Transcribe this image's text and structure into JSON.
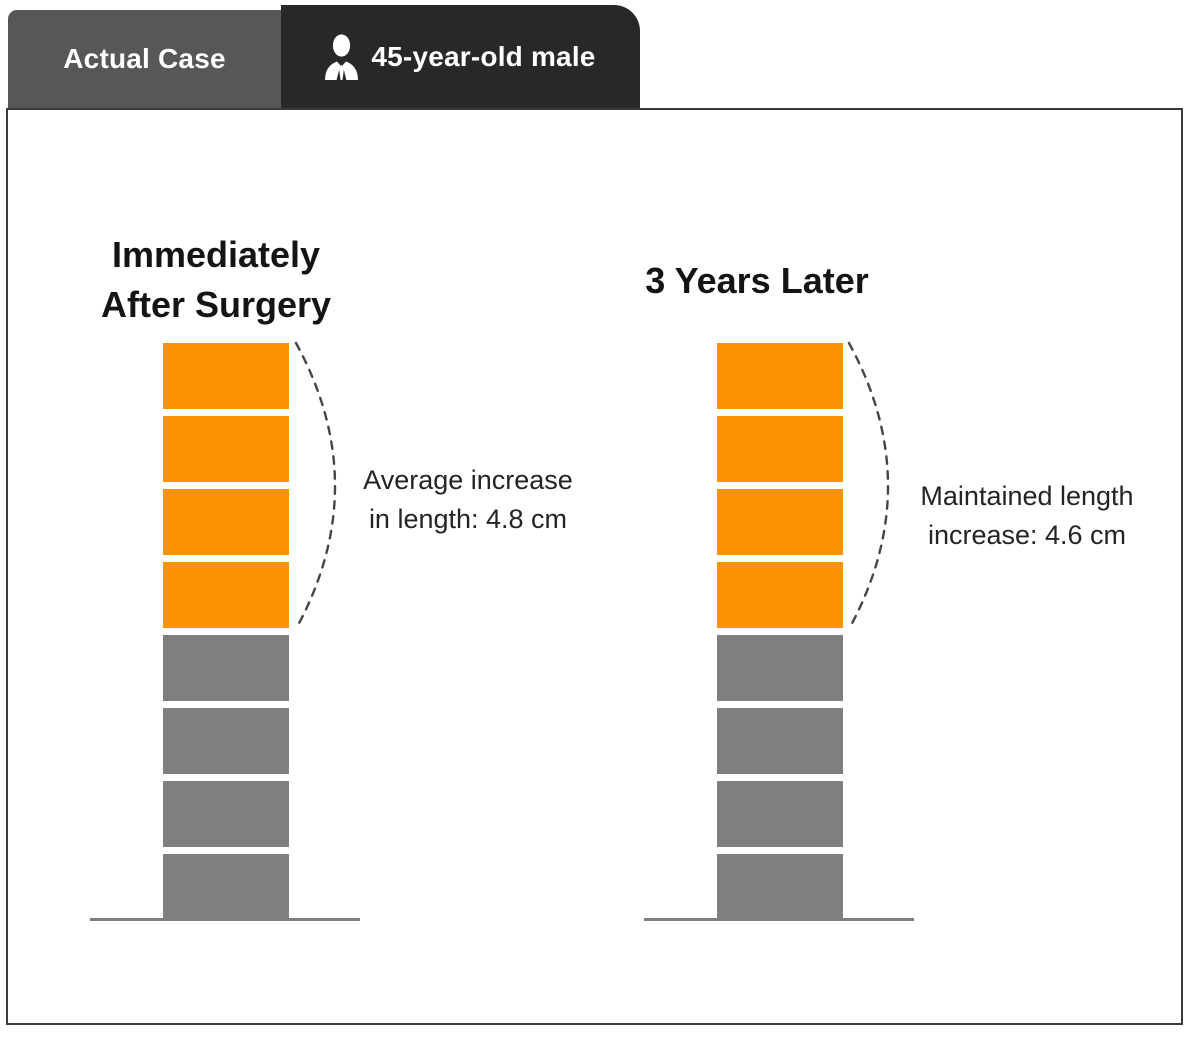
{
  "tabs": {
    "actual_case": {
      "label": "Actual Case"
    },
    "patient": {
      "label": "45-year-old male",
      "icon": "businessman-icon"
    }
  },
  "panels": [
    {
      "id": "immediately-after-surgery",
      "title_lines": [
        "Immediately",
        "After Surgery"
      ],
      "segments": {
        "highlight_count": 4,
        "base_count": 4
      },
      "annotation_lines": [
        "Average increase",
        "in length: 4.8 cm"
      ],
      "value_cm": 4.8
    },
    {
      "id": "three-years-later",
      "title_lines": [
        "3 Years Later"
      ],
      "segments": {
        "highlight_count": 4,
        "base_count": 4
      },
      "annotation_lines": [
        "Maintained length",
        "increase: 4.6 cm"
      ],
      "value_cm": 4.6
    }
  ],
  "colors": {
    "highlight_segment": "#FB9304",
    "base_segment": "#7F7F7F",
    "tab_inactive_bg": "#57575A",
    "tab_active_bg": "#28282A",
    "card_border": "#3B3B3B",
    "dash_stroke": "#454545",
    "baseline": "#7F7F7F"
  },
  "chart_data": {
    "type": "bar",
    "description": "Stacked segment columns comparing penile length immediately after surgery vs 3 years later; orange segments show gained length over gray original segments",
    "categories": [
      "Immediately After Surgery",
      "3 Years Later"
    ],
    "series": [
      {
        "name": "Gained length (orange segments)",
        "values": [
          4,
          4
        ]
      },
      {
        "name": "Original length (gray segments)",
        "values": [
          4,
          4
        ]
      }
    ],
    "annotations": [
      "Average increase in length: 4.8 cm",
      "Maintained length increase: 4.6 cm"
    ]
  }
}
